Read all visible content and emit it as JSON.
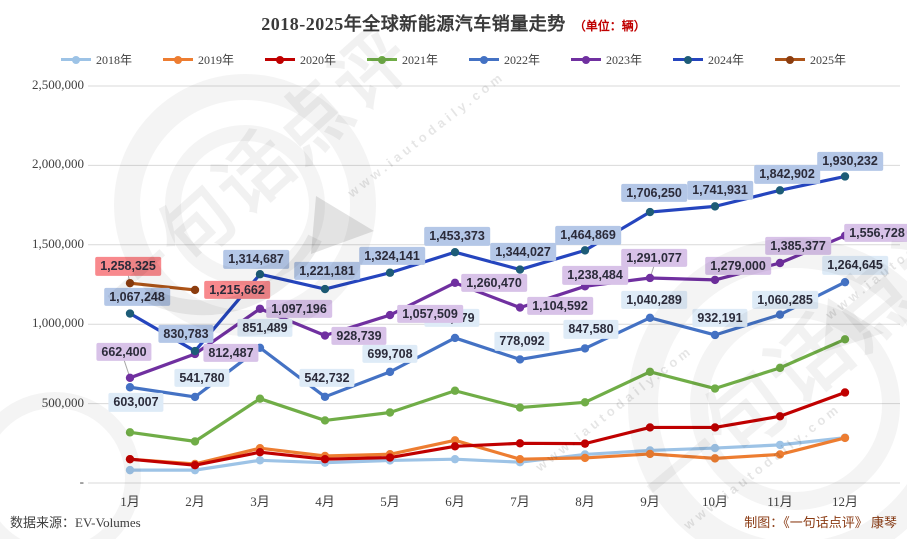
{
  "title": {
    "main": "2018-2025年全球新能源汽车销量走势",
    "unit": "（单位：辆）"
  },
  "footer": {
    "source": "数据来源：EV-Volumes",
    "credit": "制图：《一句话点评》 康琴"
  },
  "watermark": {
    "stamp_text": "一句话点评",
    "url_text": "www.iautodaily.com",
    "arrow_icon": "right-arrow"
  },
  "chart_data": {
    "type": "line",
    "title": "2018-2025年全球新能源汽车销量走势（单位：辆）",
    "xlabel": "",
    "ylabel": "",
    "ylim": [
      0,
      2500000
    ],
    "grid": true,
    "legend_position": "top",
    "categories": [
      "1月",
      "2月",
      "3月",
      "4月",
      "5月",
      "6月",
      "7月",
      "8月",
      "9月",
      "10月",
      "11月",
      "12月"
    ],
    "y_ticks": [
      {
        "label": "2,500,000",
        "value": 2500000
      },
      {
        "label": "2,000,000",
        "value": 2000000
      },
      {
        "label": "1,500,000",
        "value": 1500000
      },
      {
        "label": "1,000,000",
        "value": 1000000
      },
      {
        "label": "500,000",
        "value": 500000
      },
      {
        "label": "-",
        "value": 0
      }
    ],
    "series": [
      {
        "name": "2018年",
        "color": "#9DC3E6",
        "data_labels": false,
        "values": [
          81000,
          81000,
          143000,
          128000,
          142000,
          150000,
          131000,
          180000,
          205000,
          220000,
          240000,
          285000
        ]
      },
      {
        "name": "2019年",
        "color": "#ED7D31",
        "data_labels": false,
        "values": [
          150000,
          120000,
          219000,
          170000,
          181000,
          269000,
          150000,
          158000,
          183000,
          155000,
          180000,
          284000
        ]
      },
      {
        "name": "2020年",
        "color": "#C00000",
        "data_labels": false,
        "values": [
          150000,
          112000,
          194000,
          150000,
          160000,
          231000,
          250000,
          248000,
          350000,
          350000,
          420000,
          570000
        ]
      },
      {
        "name": "2021年",
        "color": "#70AD47",
        "data_labels": false,
        "values": [
          319000,
          262000,
          531000,
          394000,
          444000,
          581000,
          475000,
          508000,
          700000,
          595000,
          725000,
          905000
        ]
      },
      {
        "name": "2022年",
        "color": "#4472C4",
        "data_labels": true,
        "label_bg": "#DEEBF7",
        "values": [
          603007,
          541780,
          851489,
          542732,
          699708,
          913479,
          778092,
          847580,
          1040289,
          932191,
          1060285,
          1264645
        ],
        "label_offsets": [
          [
            6,
            15
          ],
          [
            7,
            -19
          ],
          [
            5,
            -20
          ],
          [
            2,
            -19
          ],
          [
            0,
            -18
          ],
          [
            -3,
            -20
          ],
          [
            2,
            -18
          ],
          [
            6,
            -19
          ],
          [
            4,
            -18
          ],
          [
            5,
            -17
          ],
          [
            5,
            -15
          ],
          [
            10,
            -17
          ]
        ]
      },
      {
        "name": "2023年",
        "color": "#7030A0",
        "data_labels": true,
        "label_bg": "#D8C2E8",
        "values": [
          662400,
          812487,
          1097196,
          928739,
          1057509,
          1260470,
          1104592,
          1238484,
          1291077,
          1279000,
          1385377,
          1556728
        ],
        "label_offsets": [
          [
            -6,
            -26,
            1
          ],
          [
            36,
            -1
          ],
          [
            39,
            0
          ],
          [
            34,
            0
          ],
          [
            40,
            -1
          ],
          [
            39,
            0
          ],
          [
            40,
            -2
          ],
          [
            10,
            -11
          ],
          [
            4,
            -20,
            1
          ],
          [
            23,
            -14
          ],
          [
            18,
            -17
          ],
          [
            32,
            -3
          ]
        ]
      },
      {
        "name": "2024年",
        "color": "#2545BE",
        "marker_color": "#1D5C77",
        "data_labels": true,
        "label_bg": "#B4C7E7",
        "values": [
          1067248,
          830783,
          1314687,
          1221181,
          1324141,
          1453373,
          1344027,
          1464869,
          1706250,
          1741931,
          1842902,
          1930232
        ],
        "label_offsets": [
          [
            7,
            -17
          ],
          [
            -9,
            -17
          ],
          [
            -4,
            -15
          ],
          [
            2,
            -18
          ],
          [
            2,
            -17
          ],
          [
            2,
            -16
          ],
          [
            3,
            -18
          ],
          [
            3,
            -15
          ],
          [
            4,
            -19
          ],
          [
            5,
            -16
          ],
          [
            7,
            -16
          ],
          [
            5,
            -15
          ]
        ]
      },
      {
        "name": "2025年",
        "color": "#AD5418",
        "marker_color": "#8C3D0F",
        "data_labels": true,
        "label_bg": "#F8898D",
        "values": [
          1258325,
          1215662
        ],
        "label_offsets": [
          [
            -2,
            -17,
            1
          ],
          [
            42,
            0
          ]
        ]
      }
    ]
  }
}
